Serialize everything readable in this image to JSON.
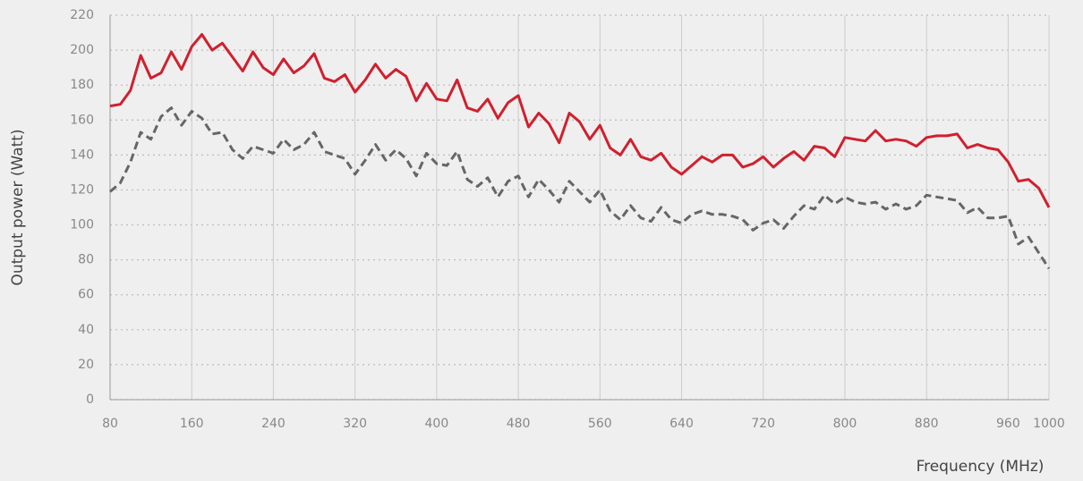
{
  "chart_data": {
    "type": "line",
    "x_label": "Frequency (MHz)",
    "y_label": "Output power (Watt)",
    "x": [
      80,
      90,
      100,
      110,
      120,
      130,
      140,
      150,
      160,
      170,
      180,
      190,
      200,
      210,
      220,
      230,
      240,
      250,
      260,
      270,
      280,
      290,
      300,
      310,
      320,
      330,
      340,
      350,
      360,
      370,
      380,
      390,
      400,
      410,
      420,
      430,
      440,
      450,
      460,
      470,
      480,
      490,
      500,
      510,
      520,
      530,
      540,
      550,
      560,
      570,
      580,
      590,
      600,
      610,
      620,
      630,
      640,
      650,
      660,
      670,
      680,
      690,
      700,
      710,
      720,
      730,
      740,
      750,
      760,
      770,
      780,
      790,
      800,
      810,
      820,
      830,
      840,
      850,
      860,
      870,
      880,
      890,
      900,
      910,
      920,
      930,
      940,
      950,
      960,
      970,
      980,
      990,
      1000
    ],
    "series": [
      {
        "color": "#d0202e",
        "dash": "solid",
        "values": [
          168,
          169,
          177,
          197,
          184,
          187,
          199,
          189,
          202,
          209,
          200,
          204,
          196,
          188,
          199,
          190,
          186,
          195,
          187,
          191,
          198,
          184,
          182,
          186,
          176,
          183,
          192,
          184,
          189,
          185,
          171,
          181,
          172,
          171,
          183,
          167,
          165,
          172,
          161,
          170,
          174,
          156,
          164,
          158,
          147,
          164,
          159,
          149,
          157,
          144,
          140,
          149,
          139,
          137,
          141,
          133,
          129,
          134,
          139,
          136,
          140,
          140,
          133,
          135,
          139,
          133,
          138,
          142,
          137,
          145,
          144,
          139,
          150,
          149,
          148,
          154,
          148,
          149,
          148,
          145,
          150,
          151,
          151,
          152,
          144,
          146,
          144,
          143,
          136,
          125,
          126,
          121,
          110
        ]
      },
      {
        "color": "#666666",
        "dash": "dashed",
        "values": [
          119,
          124,
          136,
          153,
          149,
          162,
          167,
          157,
          165,
          161,
          152,
          153,
          143,
          138,
          145,
          143,
          141,
          149,
          143,
          146,
          153,
          142,
          140,
          138,
          129,
          137,
          146,
          137,
          143,
          138,
          128,
          141,
          135,
          134,
          142,
          126,
          122,
          127,
          116,
          125,
          128,
          116,
          126,
          120,
          113,
          125,
          119,
          113,
          120,
          108,
          103,
          111,
          104,
          102,
          110,
          103,
          101,
          106,
          108,
          106,
          106,
          105,
          103,
          97,
          101,
          103,
          98,
          105,
          111,
          109,
          117,
          112,
          116,
          113,
          112,
          113,
          109,
          112,
          109,
          111,
          117,
          116,
          115,
          114,
          107,
          110,
          104,
          104,
          105,
          89,
          93,
          84,
          75
        ]
      }
    ],
    "xlim": [
      80,
      1000
    ],
    "xticks": [
      80,
      160,
      240,
      320,
      400,
      480,
      560,
      640,
      720,
      800,
      880,
      960,
      1000
    ],
    "ylim": [
      0,
      220
    ],
    "yticks": [
      0,
      20,
      40,
      60,
      80,
      100,
      120,
      140,
      160,
      180,
      200,
      220
    ],
    "grid": true
  }
}
